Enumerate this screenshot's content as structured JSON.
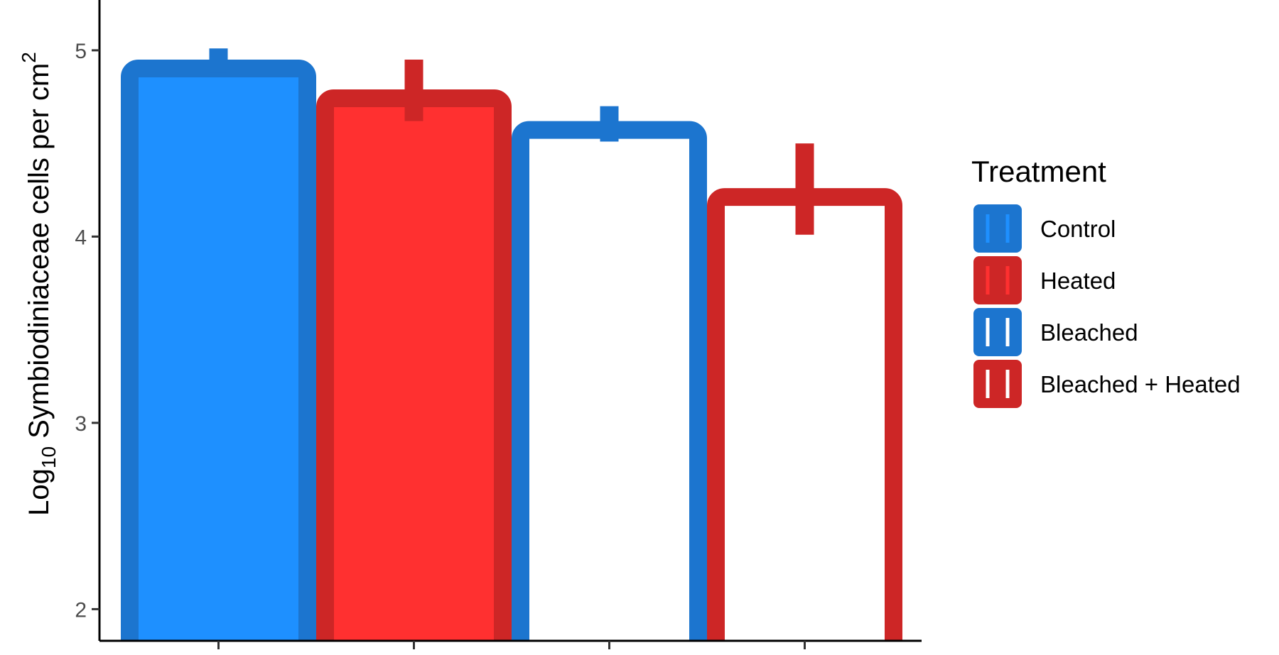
{
  "chart_data": {
    "type": "bar",
    "title": "",
    "ylabel": {
      "base": "Log",
      "subscript": "10",
      "rest": " Symbiodiniaceae cells per cm",
      "superscript": "2"
    },
    "xlabel": "",
    "ylim": [
      1.83,
      5.27
    ],
    "yticks": [
      2,
      3,
      4,
      5
    ],
    "grid": false,
    "legend_position": "right",
    "series": [
      {
        "name": "Control",
        "value": 4.95,
        "error_low": 4.88,
        "error_high": 5.01,
        "fill": "#1e90ff",
        "outline": "#1c75cf"
      },
      {
        "name": "Heated",
        "value": 4.79,
        "error_low": 4.62,
        "error_high": 4.95,
        "fill": "#ff3030",
        "outline": "#cd2626"
      },
      {
        "name": "Bleached",
        "value": 4.62,
        "error_low": 4.51,
        "error_high": 4.7,
        "fill": "#ffffff",
        "outline": "#1c75cf"
      },
      {
        "name": "Bleached + Heated",
        "value": 4.26,
        "error_low": 4.01,
        "error_high": 4.5,
        "fill": "#ffffff",
        "outline": "#cd2626"
      }
    ],
    "legend": {
      "title": "Treatment",
      "entries": [
        "Control",
        "Heated",
        "Bleached",
        "Bleached + Heated"
      ]
    }
  }
}
